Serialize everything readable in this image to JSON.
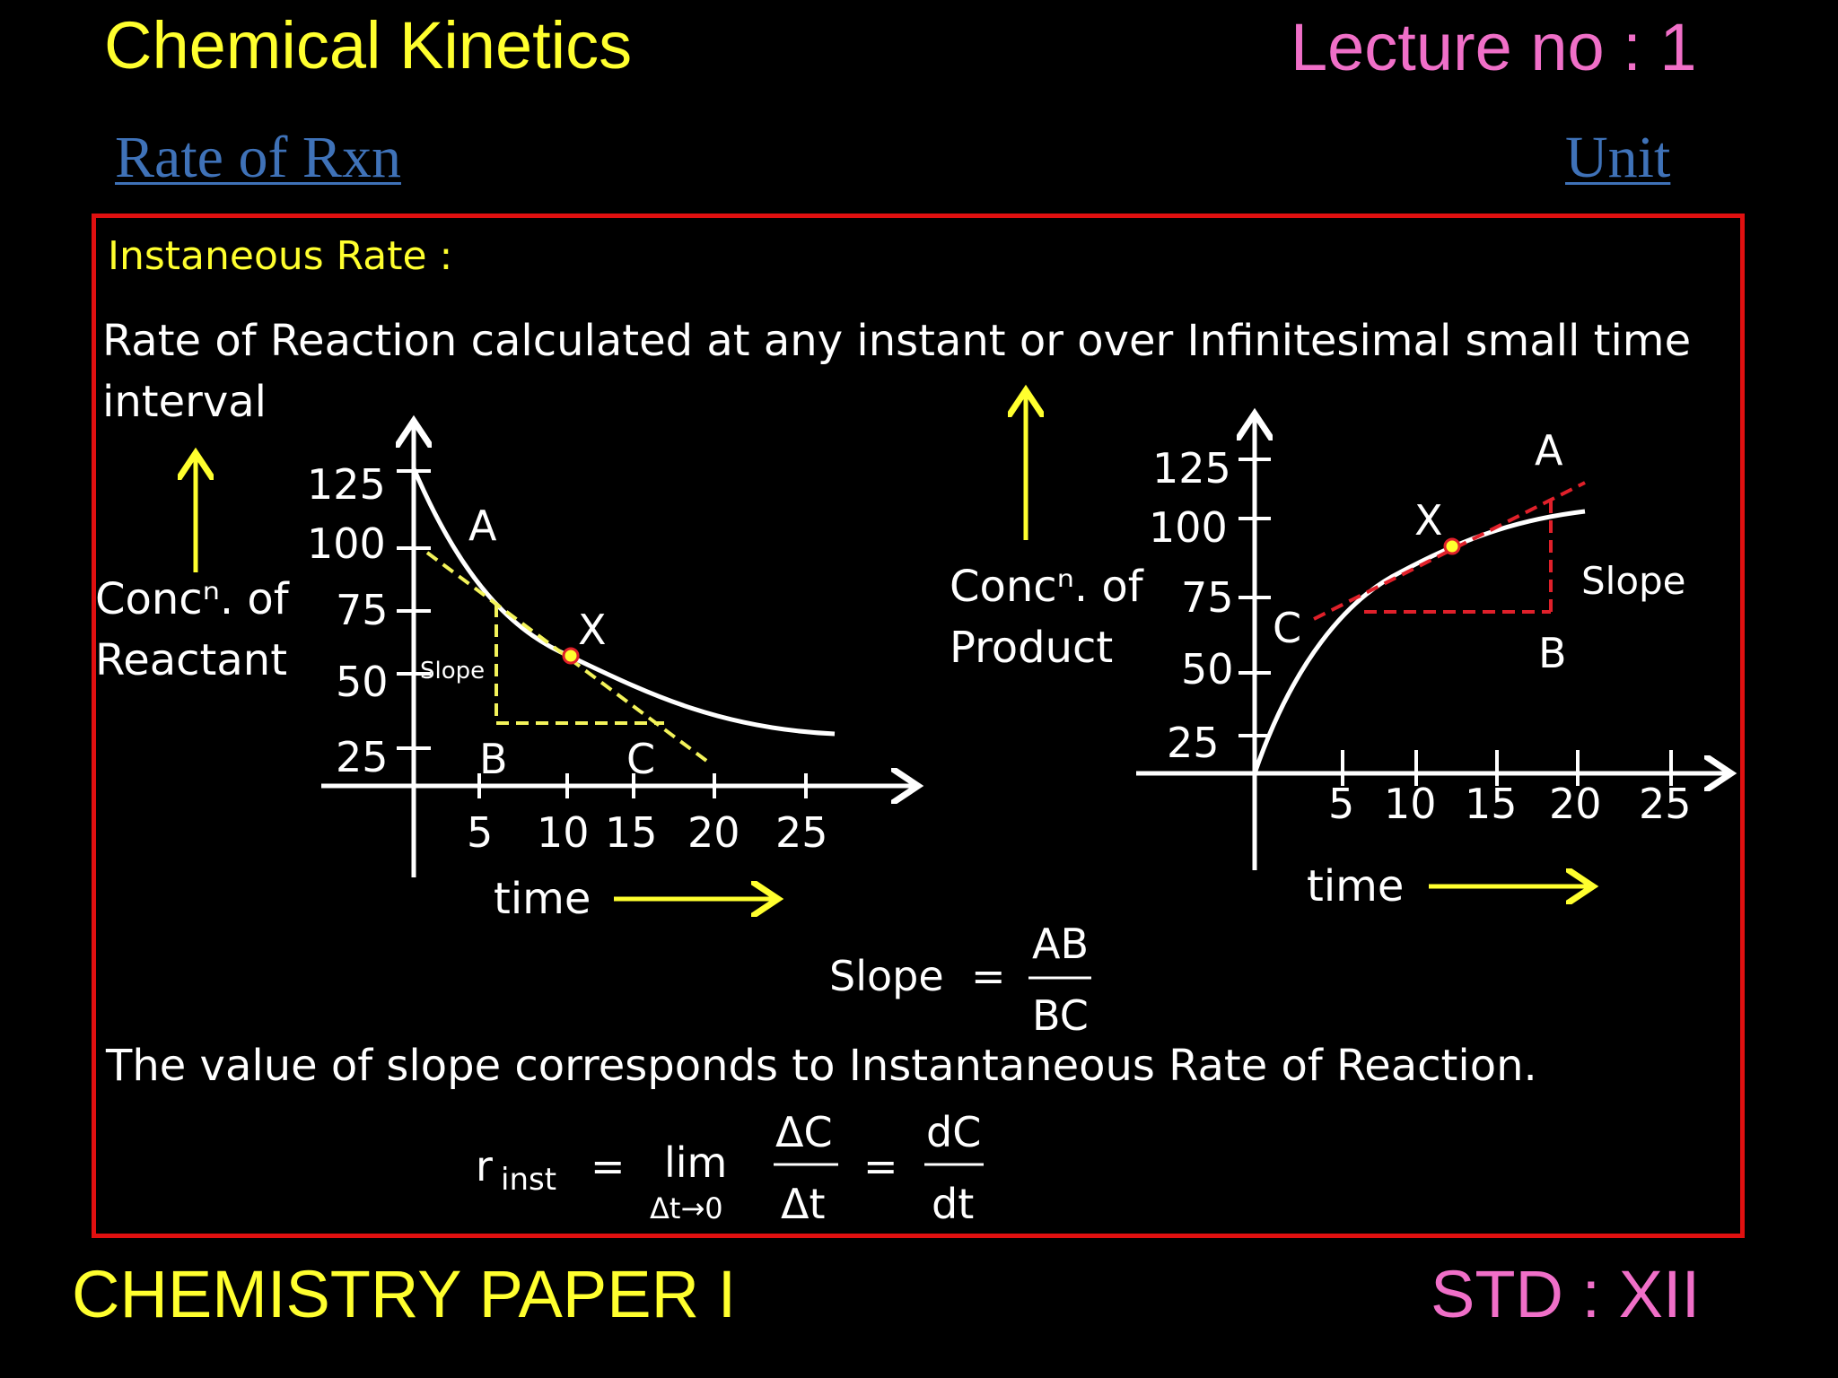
{
  "header": {
    "title": "Chemical Kinetics",
    "lecture": "Lecture no : 1",
    "rate_link": "Rate of Rxn",
    "unit_link": "Unit"
  },
  "content": {
    "heading": "Instaneous Rate :",
    "definition_line1": "Rate of Reaction calculated at any instant or over Infinitesimal small time",
    "definition_line2": "interval",
    "slope_label": "Slope",
    "slope_numerator": "AB",
    "slope_denominator": "BC",
    "conclusion": "The value of slope corresponds to Instantaneous Rate of Reaction.",
    "formula": {
      "r": "r",
      "sub": "inst",
      "lim": "lim",
      "lim_sub": "Δt→0",
      "num1": "ΔC",
      "den1": "Δt",
      "num2": "dC",
      "den2": "dt"
    }
  },
  "graph_reactant": {
    "ylabel_line1": "Concⁿ. of",
    "ylabel_line2": "Reactant",
    "xlabel": "time",
    "y_ticks": [
      "125",
      "100",
      "75",
      "50",
      "25"
    ],
    "x_ticks": [
      "5",
      "10",
      "15",
      "20",
      "25"
    ],
    "point_a": "A",
    "point_b": "B",
    "point_c": "C",
    "point_x": "X",
    "slope_tag": "Slope"
  },
  "graph_product": {
    "ylabel_line1": "Concⁿ. of",
    "ylabel_line2": "Product",
    "xlabel": "time",
    "y_ticks": [
      "125",
      "100",
      "75",
      "50",
      "25"
    ],
    "x_ticks": [
      "5",
      "10",
      "15",
      "20",
      "25"
    ],
    "point_a": "A",
    "point_b": "B",
    "point_c": "C",
    "point_x": "X",
    "slope_tag": "Slope"
  },
  "footer": {
    "paper": "CHEMISTRY PAPER I",
    "std": "STD : XII"
  },
  "colors": {
    "title_yellow": "#ffff2e",
    "pink": "#f06fc8",
    "link_blue": "#3f72b8",
    "frame_red": "#e01010",
    "tangent_reactant": "#f3f35a",
    "tangent_product": "#e0202a"
  }
}
